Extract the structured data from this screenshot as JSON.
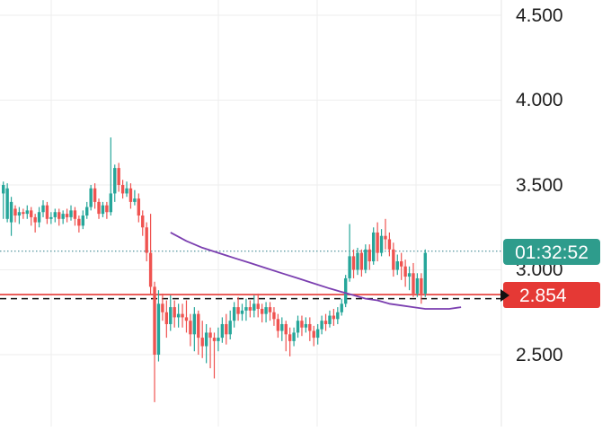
{
  "colors": {
    "up": "#26a69a",
    "down": "#ef5350",
    "ma": "#7b3fb0",
    "price_line": "#e53935",
    "last_line": "#2f7f8a",
    "countdown_bg": "#2e9c8c",
    "price_label_bg": "#e53935",
    "grid": "#eeeeee",
    "axis_text": "#1e1e1e"
  },
  "chart_data": {
    "type": "candlestick",
    "y_axis": {
      "ticks": [
        "4.500",
        "4.000",
        "3.500",
        "3.000",
        "2.500"
      ],
      "tick_values": [
        4.5,
        4.0,
        3.5,
        3.0,
        2.5
      ],
      "ylim": [
        2.09,
        4.62
      ],
      "side": "right"
    },
    "grid": true,
    "current_price": {
      "label": "2.854",
      "value": 2.854
    },
    "countdown": {
      "label": "01:32:52",
      "value": 3.11
    },
    "dashed_level": 2.83,
    "ma_line": {
      "points": [
        [
          42,
          3.22
        ],
        [
          46,
          3.17
        ],
        [
          50,
          3.13
        ],
        [
          54,
          3.1
        ],
        [
          58,
          3.07
        ],
        [
          62,
          3.04
        ],
        [
          66,
          3.01
        ],
        [
          70,
          2.98
        ],
        [
          74,
          2.95
        ],
        [
          78,
          2.92
        ],
        [
          82,
          2.89
        ],
        [
          85,
          2.87
        ],
        [
          88,
          2.85
        ],
        [
          91,
          2.83
        ],
        [
          94,
          2.82
        ],
        [
          97,
          2.8
        ],
        [
          100,
          2.79
        ],
        [
          103,
          2.78
        ],
        [
          106,
          2.77
        ],
        [
          109,
          2.77
        ],
        [
          112,
          2.77
        ],
        [
          115,
          2.78
        ]
      ]
    },
    "candles": [
      [
        3.45,
        3.5,
        3.52,
        3.3
      ],
      [
        3.3,
        3.48,
        3.51,
        3.28
      ],
      [
        3.28,
        3.4,
        3.43,
        3.2
      ],
      [
        3.36,
        3.32,
        3.38,
        3.28
      ],
      [
        3.32,
        3.34,
        3.37,
        3.27
      ],
      [
        3.34,
        3.33,
        3.36,
        3.3
      ],
      [
        3.33,
        3.35,
        3.38,
        3.3
      ],
      [
        3.35,
        3.31,
        3.37,
        3.26
      ],
      [
        3.31,
        3.28,
        3.33,
        3.22
      ],
      [
        3.28,
        3.34,
        3.37,
        3.25
      ],
      [
        3.34,
        3.38,
        3.41,
        3.31
      ],
      [
        3.38,
        3.3,
        3.4,
        3.27
      ],
      [
        3.3,
        3.31,
        3.34,
        3.27
      ],
      [
        3.31,
        3.34,
        3.36,
        3.28
      ],
      [
        3.34,
        3.3,
        3.36,
        3.26
      ],
      [
        3.3,
        3.33,
        3.35,
        3.27
      ],
      [
        3.33,
        3.31,
        3.36,
        3.28
      ],
      [
        3.31,
        3.35,
        3.38,
        3.29
      ],
      [
        3.35,
        3.3,
        3.37,
        3.26
      ],
      [
        3.3,
        3.26,
        3.32,
        3.22
      ],
      [
        3.26,
        3.32,
        3.35,
        3.24
      ],
      [
        3.32,
        3.37,
        3.4,
        3.3
      ],
      [
        3.37,
        3.48,
        3.5,
        3.35
      ],
      [
        3.48,
        3.4,
        3.51,
        3.36
      ],
      [
        3.4,
        3.33,
        3.42,
        3.3
      ],
      [
        3.33,
        3.38,
        3.4,
        3.31
      ],
      [
        3.38,
        3.34,
        3.4,
        3.3
      ],
      [
        3.34,
        3.45,
        3.78,
        3.32
      ],
      [
        3.45,
        3.6,
        3.62,
        3.4
      ],
      [
        3.6,
        3.5,
        3.63,
        3.46
      ],
      [
        3.5,
        3.45,
        3.53,
        3.42
      ],
      [
        3.45,
        3.48,
        3.52,
        3.43
      ],
      [
        3.48,
        3.4,
        3.51,
        3.36
      ],
      [
        3.4,
        3.42,
        3.47,
        3.38
      ],
      [
        3.42,
        3.32,
        3.45,
        3.28
      ],
      [
        3.32,
        3.25,
        3.35,
        3.2
      ],
      [
        3.25,
        3.1,
        3.28,
        3.05
      ],
      [
        3.1,
        2.9,
        3.33,
        2.85
      ],
      [
        2.9,
        2.5,
        2.93,
        2.22
      ],
      [
        2.5,
        2.8,
        2.88,
        2.46
      ],
      [
        2.8,
        2.75,
        2.86,
        2.7
      ],
      [
        2.75,
        2.68,
        2.82,
        2.6
      ],
      [
        2.68,
        2.78,
        2.85,
        2.64
      ],
      [
        2.78,
        2.72,
        2.82,
        2.66
      ],
      [
        2.72,
        2.74,
        2.8,
        2.66
      ],
      [
        2.74,
        2.72,
        2.8,
        2.66
      ],
      [
        2.72,
        2.7,
        2.82,
        2.63
      ],
      [
        2.7,
        2.62,
        2.74,
        2.55
      ],
      [
        2.62,
        2.74,
        2.78,
        2.52
      ],
      [
        2.74,
        2.6,
        2.76,
        2.5
      ],
      [
        2.6,
        2.55,
        2.7,
        2.48
      ],
      [
        2.55,
        2.63,
        2.68,
        2.45
      ],
      [
        2.63,
        2.6,
        2.66,
        2.42
      ],
      [
        2.6,
        2.58,
        2.63,
        2.36
      ],
      [
        2.58,
        2.6,
        2.66,
        2.52
      ],
      [
        2.6,
        2.68,
        2.72,
        2.57
      ],
      [
        2.68,
        2.62,
        2.74,
        2.56
      ],
      [
        2.62,
        2.7,
        2.76,
        2.59
      ],
      [
        2.7,
        2.78,
        2.81,
        2.66
      ],
      [
        2.78,
        2.74,
        2.84,
        2.7
      ],
      [
        2.74,
        2.76,
        2.8,
        2.7
      ],
      [
        2.76,
        2.78,
        2.83,
        2.7
      ],
      [
        2.78,
        2.76,
        2.82,
        2.72
      ],
      [
        2.76,
        2.8,
        2.85,
        2.72
      ],
      [
        2.8,
        2.77,
        2.86,
        2.72
      ],
      [
        2.77,
        2.74,
        2.8,
        2.69
      ],
      [
        2.74,
        2.78,
        2.81,
        2.69
      ],
      [
        2.78,
        2.75,
        2.81,
        2.7
      ],
      [
        2.75,
        2.71,
        2.78,
        2.67
      ],
      [
        2.71,
        2.64,
        2.74,
        2.6
      ],
      [
        2.64,
        2.68,
        2.72,
        2.58
      ],
      [
        2.68,
        2.62,
        2.7,
        2.52
      ],
      [
        2.62,
        2.58,
        2.66,
        2.49
      ],
      [
        2.58,
        2.63,
        2.66,
        2.55
      ],
      [
        2.63,
        2.7,
        2.73,
        2.6
      ],
      [
        2.7,
        2.66,
        2.73,
        2.61
      ],
      [
        2.66,
        2.68,
        2.72,
        2.63
      ],
      [
        2.68,
        2.64,
        2.72,
        2.58
      ],
      [
        2.64,
        2.6,
        2.67,
        2.55
      ],
      [
        2.6,
        2.65,
        2.68,
        2.56
      ],
      [
        2.65,
        2.7,
        2.73,
        2.62
      ],
      [
        2.7,
        2.68,
        2.74,
        2.64
      ],
      [
        2.68,
        2.73,
        2.76,
        2.66
      ],
      [
        2.73,
        2.71,
        2.77,
        2.67
      ],
      [
        2.71,
        2.75,
        2.78,
        2.68
      ],
      [
        2.75,
        2.8,
        2.83,
        2.73
      ],
      [
        2.8,
        2.95,
        2.97,
        2.78
      ],
      [
        2.95,
        3.08,
        3.27,
        2.93
      ],
      [
        3.08,
        3.0,
        3.12,
        2.95
      ],
      [
        3.0,
        3.1,
        3.13,
        2.97
      ],
      [
        3.1,
        3.0,
        3.12,
        2.96
      ],
      [
        3.0,
        3.12,
        3.15,
        2.98
      ],
      [
        3.12,
        3.05,
        3.15,
        3.0
      ],
      [
        3.05,
        3.22,
        3.25,
        3.03
      ],
      [
        3.22,
        3.1,
        3.28,
        3.05
      ],
      [
        3.1,
        3.2,
        3.24,
        3.08
      ],
      [
        3.2,
        3.18,
        3.3,
        3.12
      ],
      [
        3.18,
        3.12,
        3.22,
        3.08
      ],
      [
        3.12,
        3.0,
        3.16,
        2.96
      ],
      [
        3.0,
        3.05,
        3.09,
        2.97
      ],
      [
        3.05,
        3.02,
        3.1,
        2.94
      ],
      [
        3.02,
        2.96,
        3.06,
        2.9
      ],
      [
        2.96,
        2.98,
        3.02,
        2.88
      ],
      [
        2.98,
        2.86,
        3.04,
        2.84
      ],
      [
        2.86,
        2.95,
        2.98,
        2.84
      ],
      [
        2.95,
        2.86,
        2.98,
        2.8
      ],
      [
        2.86,
        3.1,
        3.12,
        2.84
      ]
    ]
  }
}
